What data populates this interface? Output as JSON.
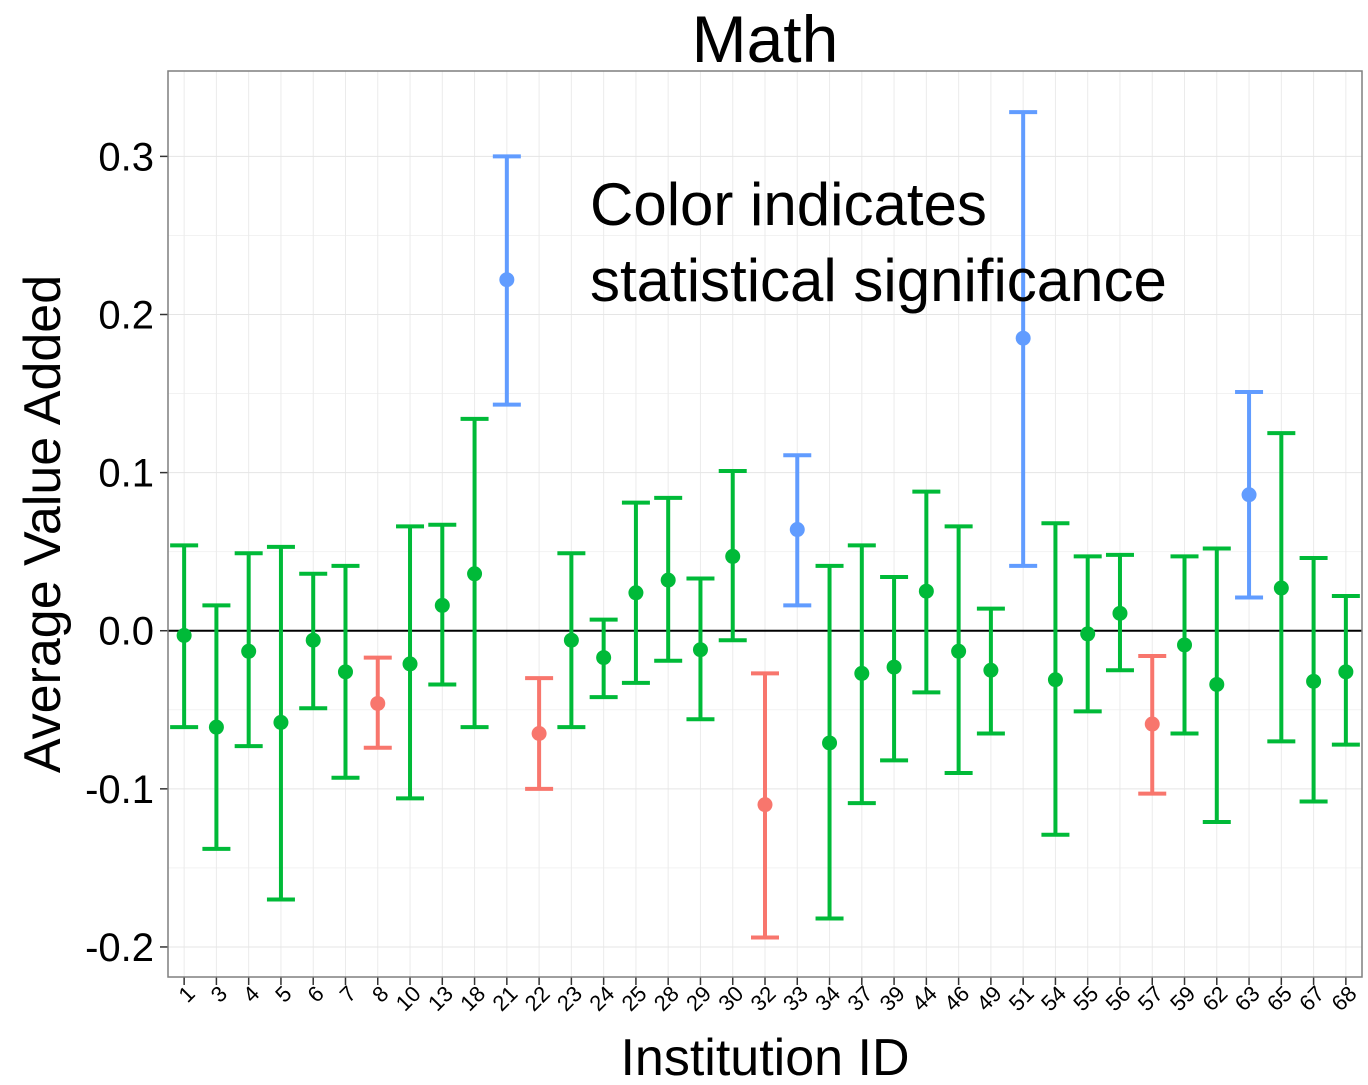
{
  "chart_data": {
    "type": "errorbar",
    "title": "Math",
    "x_label": "Institution ID",
    "y_label": "Average Value Added",
    "annotation": [
      "Color indicates",
      "statistical significance"
    ],
    "categories": [
      "1",
      "3",
      "4",
      "5",
      "6",
      "7",
      "8",
      "10",
      "13",
      "18",
      "21",
      "22",
      "23",
      "24",
      "25",
      "28",
      "29",
      "30",
      "32",
      "33",
      "34",
      "37",
      "39",
      "44",
      "46",
      "49",
      "51",
      "54",
      "55",
      "56",
      "57",
      "59",
      "62",
      "63",
      "65",
      "67",
      "68"
    ],
    "values": [
      -0.003,
      -0.061,
      -0.013,
      -0.058,
      -0.006,
      -0.026,
      -0.046,
      -0.021,
      0.016,
      0.036,
      0.222,
      -0.065,
      -0.006,
      -0.017,
      0.024,
      0.032,
      -0.012,
      0.047,
      -0.11,
      0.064,
      -0.071,
      -0.027,
      -0.023,
      0.025,
      -0.013,
      -0.025,
      0.185,
      -0.031,
      -0.002,
      0.011,
      -0.059,
      -0.009,
      -0.034,
      0.086,
      0.027,
      -0.032,
      -0.026
    ],
    "lower": [
      -0.061,
      -0.138,
      -0.073,
      -0.17,
      -0.049,
      -0.093,
      -0.074,
      -0.106,
      -0.034,
      -0.061,
      0.143,
      -0.1,
      -0.061,
      -0.042,
      -0.033,
      -0.019,
      -0.056,
      -0.006,
      -0.194,
      0.016,
      -0.182,
      -0.109,
      -0.082,
      -0.039,
      -0.09,
      -0.065,
      0.041,
      -0.129,
      -0.051,
      -0.025,
      -0.103,
      -0.065,
      -0.121,
      0.021,
      -0.07,
      -0.108,
      -0.072
    ],
    "upper": [
      0.054,
      0.016,
      0.049,
      0.053,
      0.036,
      0.041,
      -0.017,
      0.066,
      0.067,
      0.134,
      0.3,
      -0.03,
      0.049,
      0.007,
      0.081,
      0.084,
      0.033,
      0.101,
      -0.027,
      0.111,
      0.041,
      0.054,
      0.034,
      0.088,
      0.066,
      0.014,
      0.328,
      0.068,
      0.047,
      0.048,
      -0.016,
      0.047,
      0.052,
      0.151,
      0.125,
      0.046,
      0.022
    ],
    "colors": [
      "#00ba38",
      "#00ba38",
      "#00ba38",
      "#00ba38",
      "#00ba38",
      "#00ba38",
      "#f8766d",
      "#00ba38",
      "#00ba38",
      "#00ba38",
      "#619cff",
      "#f8766d",
      "#00ba38",
      "#00ba38",
      "#00ba38",
      "#00ba38",
      "#00ba38",
      "#00ba38",
      "#f8766d",
      "#619cff",
      "#00ba38",
      "#00ba38",
      "#00ba38",
      "#00ba38",
      "#00ba38",
      "#00ba38",
      "#619cff",
      "#00ba38",
      "#00ba38",
      "#00ba38",
      "#f8766d",
      "#00ba38",
      "#00ba38",
      "#619cff",
      "#00ba38",
      "#00ba38",
      "#00ba38"
    ],
    "ylim": [
      -0.219,
      0.354
    ],
    "yticks": [
      -0.2,
      -0.1,
      {
        "value": 0,
        "label": "0.0"
      },
      0.1,
      0.2,
      0.3
    ],
    "hline": 0,
    "grid": true
  }
}
